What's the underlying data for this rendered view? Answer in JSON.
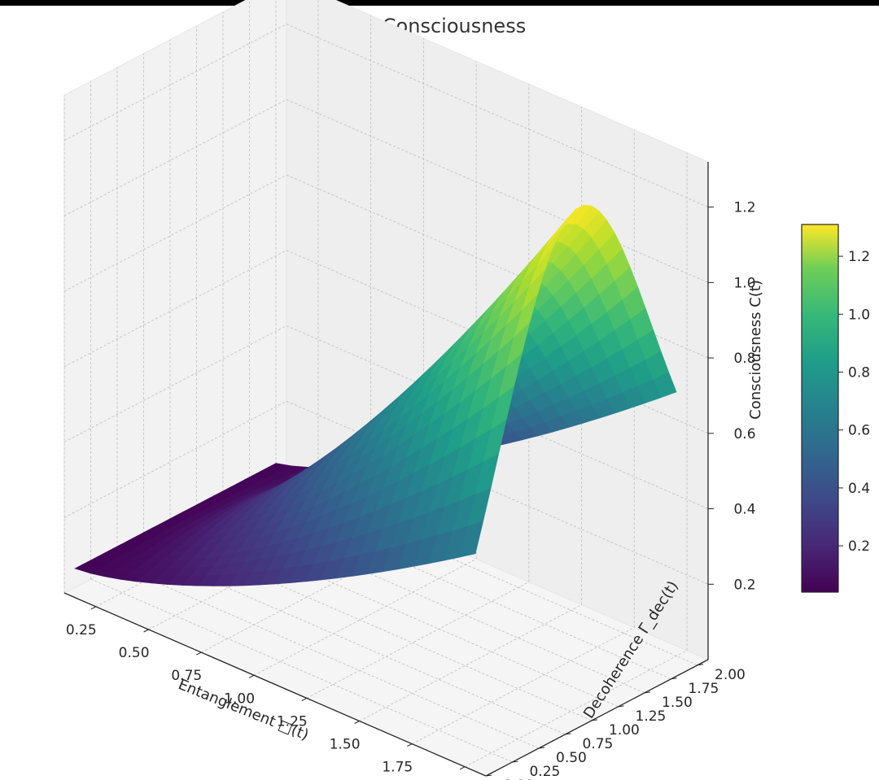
{
  "chart_data": {
    "type": "3d-surface",
    "title": "3D Heatmap of Consciousness",
    "xlabel": "Entanglement □(t)",
    "ylabel": "Decoherence Γ_dec(t)",
    "zlabel": "Consciousness C(t)",
    "xlim": [
      0.1,
      2.1
    ],
    "ylim": [
      0.0,
      2.1
    ],
    "zlim": [
      0.0,
      1.32
    ],
    "x_ticks": [
      0.25,
      0.5,
      0.75,
      1.0,
      1.25,
      1.5,
      1.75,
      2.0
    ],
    "x_tick_labels": [
      "0.25",
      "0.50",
      "0.75",
      "1.00",
      "1.25",
      "1.50",
      "1.75",
      "2.00"
    ],
    "y_ticks": [
      0.0,
      0.25,
      0.5,
      0.75,
      1.0,
      1.25,
      1.5,
      1.75,
      2.0
    ],
    "y_tick_labels": [
      "0.00",
      "0.25",
      "0.50",
      "0.75",
      "1.00",
      "1.25",
      "1.50",
      "1.75",
      "2.00"
    ],
    "z_ticks": [
      0.2,
      0.4,
      0.6,
      0.8,
      1.0,
      1.2
    ],
    "z_tick_labels": [
      "0.2",
      "0.4",
      "0.6",
      "0.8",
      "1.0",
      "1.2"
    ],
    "surface": {
      "x_range": [
        0.1,
        2.0
      ],
      "y_range": [
        0.1,
        2.0
      ],
      "corners": [
        {
          "x": 0.1,
          "y": 0.1,
          "z": 0.05
        },
        {
          "x": 2.0,
          "y": 2.0,
          "z": 0.6
        },
        {
          "x": 2.0,
          "y": 0.1,
          "z": 0.05
        },
        {
          "x": 0.1,
          "y": 2.0,
          "z": 0.05
        }
      ],
      "peak": {
        "x": 2.0,
        "y": 1.0,
        "z": 1.25
      }
    },
    "colormap": "viridis",
    "colorbar": {
      "range": [
        0.04,
        1.31
      ],
      "ticks": [
        0.2,
        0.4,
        0.6,
        0.8,
        1.0,
        1.2
      ],
      "tick_labels": [
        "0.2",
        "0.4",
        "0.6",
        "0.8",
        "1.0",
        "1.2"
      ]
    },
    "colors": {
      "pane": "#f2f2f2",
      "grid": "#c0c0c0",
      "viridis_low": "#440154",
      "viridis_mid": "#21918c",
      "viridis_high": "#fde725"
    }
  }
}
